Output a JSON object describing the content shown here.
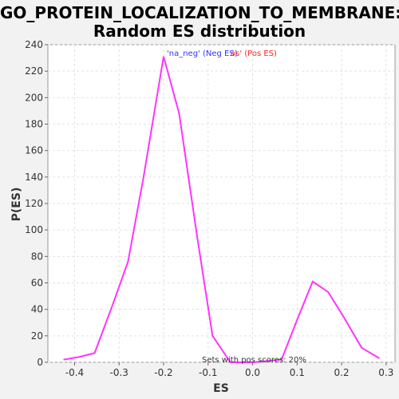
{
  "chart_data": {
    "type": "line",
    "title": "GO_PROTEIN_LOCALIZATION_TO_MEMBRANE:",
    "subtitle": "Random ES distribution",
    "xlabel": "ES",
    "ylabel": "P(ES)",
    "xlim": [
      -0.46,
      0.32
    ],
    "ylim": [
      0,
      240
    ],
    "xticks": [
      "-0.4",
      "-0.3",
      "-0.2",
      "-0.1",
      "0.0",
      "0.1",
      "0.2",
      "0.3"
    ],
    "xtick_values": [
      -0.4,
      -0.3,
      -0.2,
      -0.1,
      0.0,
      0.1,
      0.2,
      0.3
    ],
    "yticks": [
      "0",
      "20",
      "40",
      "60",
      "80",
      "100",
      "120",
      "140",
      "160",
      "180",
      "200",
      "220",
      "240"
    ],
    "ytick_values": [
      0,
      20,
      40,
      60,
      80,
      100,
      120,
      140,
      160,
      180,
      200,
      220,
      240
    ],
    "grid": true,
    "legend_neg": "'na_neg' (Neg ES)",
    "legend_pos": "'na_pos' (Pos ES)",
    "legend_visible_pos": "os' (Pos ES)",
    "legend_placement": "top-center",
    "annotation": "Sets with pos scores: 20%",
    "series": [
      {
        "color": "#ff33ff",
        "x": [
          -0.425,
          -0.39,
          -0.355,
          -0.315,
          -0.28,
          -0.245,
          -0.2,
          -0.165,
          -0.125,
          -0.09,
          -0.05,
          0.0,
          0.065,
          0.1,
          0.135,
          0.17,
          0.205,
          0.245,
          0.285
        ],
        "y": [
          2,
          4,
          7,
          43,
          76,
          140,
          231,
          188,
          96,
          20,
          0,
          0,
          2,
          32,
          61,
          53,
          34,
          11,
          3
        ]
      }
    ]
  }
}
